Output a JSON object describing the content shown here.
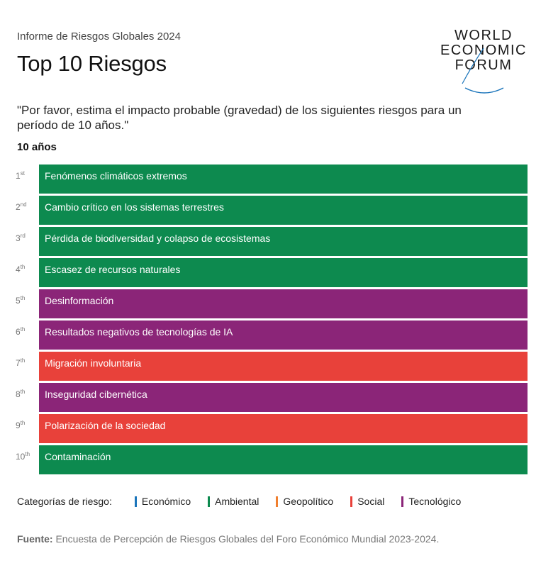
{
  "header": {
    "report": "Informe de Riesgos Globales 2024",
    "title": "Top 10 Riesgos"
  },
  "logo": {
    "line1": "WORLD",
    "line2": "ECONOMIC",
    "line3": "FORUM"
  },
  "question": "\"Por favor, estima el impacto probable (gravedad) de los siguientes riesgos para un período de 10 años.\"",
  "period": "10 años",
  "colors": {
    "economico": "#1b75bb",
    "ambiental": "#0d8a4f",
    "geopolitico": "#f07f2f",
    "social": "#e8413a",
    "tecnologico": "#8b2578"
  },
  "risks": [
    {
      "rank": "1",
      "suffix": "st",
      "label": "Fenómenos climáticos extremos",
      "category": "ambiental"
    },
    {
      "rank": "2",
      "suffix": "nd",
      "label": "Cambio crítico en los sistemas terrestres",
      "category": "ambiental"
    },
    {
      "rank": "3",
      "suffix": "rd",
      "label": "Pérdida de biodiversidad y colapso de ecosistemas",
      "category": "ambiental"
    },
    {
      "rank": "4",
      "suffix": "th",
      "label": "Escasez de recursos naturales",
      "category": "ambiental"
    },
    {
      "rank": "5",
      "suffix": "th",
      "label": "Desinformación",
      "category": "tecnologico"
    },
    {
      "rank": "6",
      "suffix": "th",
      "label": "Resultados negativos de tecnologías de IA",
      "category": "tecnologico"
    },
    {
      "rank": "7",
      "suffix": "th",
      "label": "Migración involuntaria",
      "category": "social"
    },
    {
      "rank": "8",
      "suffix": "th",
      "label": "Inseguridad cibernética",
      "category": "tecnologico"
    },
    {
      "rank": "9",
      "suffix": "th",
      "label": "Polarización de la sociedad",
      "category": "social"
    },
    {
      "rank": "10",
      "suffix": "th",
      "label": "Contaminación",
      "category": "ambiental"
    }
  ],
  "legend": {
    "label": "Categorías de riesgo:",
    "items": [
      {
        "key": "economico",
        "label": "Económico"
      },
      {
        "key": "ambiental",
        "label": "Ambiental"
      },
      {
        "key": "geopolitico",
        "label": "Geopolítico"
      },
      {
        "key": "social",
        "label": "Social"
      },
      {
        "key": "tecnologico",
        "label": "Tecnológico"
      }
    ]
  },
  "source": {
    "prefix": "Fuente:",
    "text": " Encuesta de Percepción de Riesgos Globales del Foro Económico Mundial 2023-2024."
  }
}
